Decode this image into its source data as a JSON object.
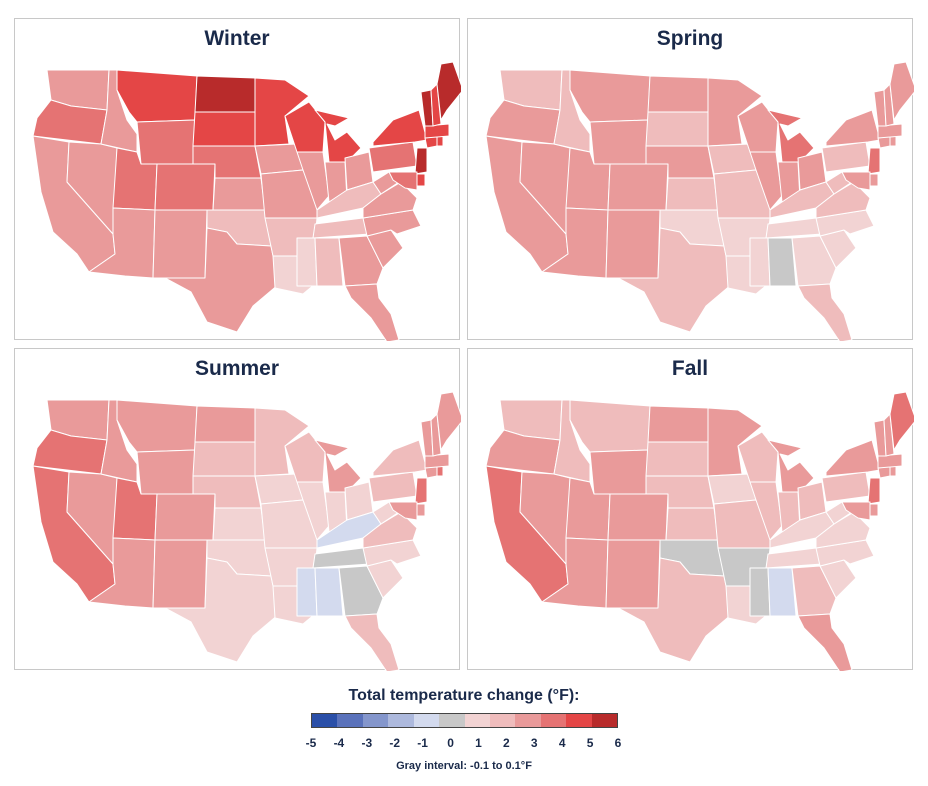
{
  "colors": {
    "scale": [
      "#2a4fa8",
      "#5a72bb",
      "#8496cc",
      "#adb9dd",
      "#d3daee",
      "#c8c8c8",
      "#f2d3d3",
      "#efbcbc",
      "#e99a9a",
      "#e57373",
      "#e44646",
      "#b82b2b"
    ],
    "gray": "#c8c8c8",
    "border": "#ffffff"
  },
  "panels": [
    {
      "title": "Winter",
      "levels": {
        "WA": 3,
        "OR": 4,
        "CA": 3,
        "NV": 3,
        "ID": 3,
        "MT": 5,
        "WY": 4,
        "UT": 4,
        "CO": 4,
        "AZ": 3,
        "NM": 3,
        "ND": 6,
        "SD": 5,
        "NE": 4,
        "KS": 3,
        "OK": 2,
        "TX": 3,
        "MN": 5,
        "IA": 3,
        "MO": 3,
        "AR": 2,
        "LA": 1,
        "WI": 5,
        "IL": 3,
        "MI": 5,
        "IN": 3,
        "OH": 3,
        "KY": 2,
        "TN": 2,
        "MS": 1,
        "AL": 2,
        "GA": 3,
        "FL": 3,
        "SC": 3,
        "NC": 3,
        "VA": 3,
        "WV": 3,
        "PA": 4,
        "NY": 5,
        "NJ": 6,
        "CT": 5,
        "RI": 5,
        "MA": 5,
        "VT": 6,
        "NH": 5,
        "ME": 6,
        "MD": 4,
        "DE": 5
      }
    },
    {
      "title": "Spring",
      "levels": {
        "WA": 2,
        "OR": 3,
        "CA": 3,
        "NV": 3,
        "ID": 2,
        "MT": 3,
        "WY": 3,
        "UT": 3,
        "CO": 3,
        "AZ": 3,
        "NM": 3,
        "ND": 3,
        "SD": 2,
        "NE": 3,
        "KS": 2,
        "OK": 1,
        "TX": 2,
        "MN": 3,
        "IA": 2,
        "MO": 2,
        "AR": 1,
        "LA": 1,
        "WI": 3,
        "IL": 3,
        "MI": 4,
        "IN": 3,
        "OH": 3,
        "KY": 2,
        "TN": 1,
        "MS": 1,
        "AL": 0,
        "GA": 1,
        "FL": 2,
        "SC": 1,
        "NC": 1,
        "VA": 2,
        "WV": 2,
        "PA": 2,
        "NY": 3,
        "NJ": 4,
        "CT": 3,
        "RI": 3,
        "MA": 3,
        "VT": 3,
        "NH": 3,
        "ME": 3,
        "MD": 3,
        "DE": 3
      }
    },
    {
      "title": "Summer",
      "levels": {
        "WA": 3,
        "OR": 4,
        "CA": 4,
        "NV": 3,
        "ID": 3,
        "MT": 3,
        "WY": 3,
        "UT": 4,
        "CO": 3,
        "AZ": 3,
        "NM": 3,
        "ND": 3,
        "SD": 2,
        "NE": 2,
        "KS": 1,
        "OK": 1,
        "TX": 1,
        "MN": 2,
        "IA": 1,
        "MO": 1,
        "AR": 1,
        "LA": 1,
        "WI": 2,
        "IL": 1,
        "MI": 3,
        "IN": 1,
        "OH": 1,
        "KY": -1,
        "TN": 0,
        "MS": -1,
        "AL": -1,
        "GA": 0,
        "FL": 2,
        "SC": 1,
        "NC": 1,
        "VA": 2,
        "WV": 1,
        "PA": 2,
        "NY": 2,
        "NJ": 4,
        "CT": 3,
        "RI": 4,
        "MA": 3,
        "VT": 3,
        "NH": 3,
        "ME": 3,
        "MD": 3,
        "DE": 3
      }
    },
    {
      "title": "Fall",
      "levels": {
        "WA": 2,
        "OR": 3,
        "CA": 4,
        "NV": 3,
        "ID": 2,
        "MT": 2,
        "WY": 3,
        "UT": 3,
        "CO": 3,
        "AZ": 3,
        "NM": 3,
        "ND": 3,
        "SD": 2,
        "NE": 2,
        "KS": 2,
        "OK": 0,
        "TX": 2,
        "MN": 3,
        "IA": 1,
        "MO": 2,
        "AR": 0,
        "LA": 1,
        "WI": 2,
        "IL": 2,
        "MI": 3,
        "IN": 2,
        "OH": 2,
        "KY": 1,
        "TN": 1,
        "MS": 0,
        "AL": -1,
        "GA": 2,
        "FL": 3,
        "SC": 1,
        "NC": 1,
        "VA": 1,
        "WV": 1,
        "PA": 2,
        "NY": 3,
        "NJ": 4,
        "CT": 3,
        "RI": 3,
        "MA": 3,
        "VT": 3,
        "NH": 3,
        "ME": 4,
        "MD": 3,
        "DE": 3
      }
    }
  ],
  "legend": {
    "title": "Total temperature change (°F):",
    "ticks": [
      "-5",
      "-4",
      "-3",
      "-2",
      "-1",
      "0",
      "1",
      "2",
      "3",
      "4",
      "5",
      "6"
    ],
    "gray_note": "Gray interval: -0.1 to 0.1°F"
  }
}
